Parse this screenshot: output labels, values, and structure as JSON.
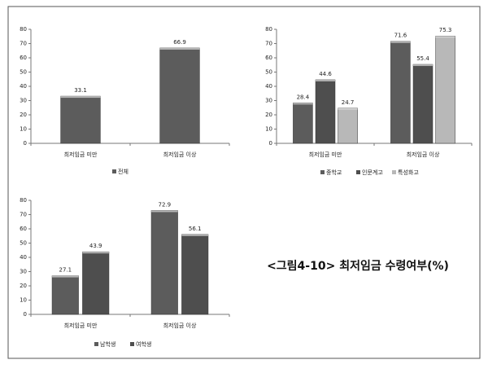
{
  "chart_data": [
    {
      "type": "bar",
      "categories": [
        "최저임금 미만",
        "최저임금 이상"
      ],
      "series": [
        {
          "name": "전체",
          "color": "#5c5c5c",
          "values": [
            33.1,
            66.9
          ]
        }
      ],
      "ylim": [
        0,
        80
      ],
      "yticks": [
        0,
        10,
        20,
        30,
        40,
        50,
        60,
        70,
        80
      ],
      "grid": false,
      "legend": "bottom"
    },
    {
      "type": "bar",
      "categories": [
        "최저임금 미만",
        "최저임금 이상"
      ],
      "series": [
        {
          "name": "중학교",
          "color": "#5c5c5c",
          "values": [
            28.4,
            71.6
          ]
        },
        {
          "name": "인문계고",
          "color": "#4e4e4e",
          "values": [
            44.6,
            55.4
          ]
        },
        {
          "name": "특성화고",
          "color": "#b8b8b8",
          "values": [
            24.7,
            75.3
          ]
        }
      ],
      "ylim": [
        0,
        80
      ],
      "yticks": [
        0,
        10,
        20,
        30,
        40,
        50,
        60,
        70,
        80
      ],
      "grid": false,
      "legend": "bottom"
    },
    {
      "type": "bar",
      "categories": [
        "최저임금 미만",
        "최저임금 이상"
      ],
      "series": [
        {
          "name": "남학생",
          "color": "#5c5c5c",
          "values": [
            27.1,
            72.9
          ]
        },
        {
          "name": "여학생",
          "color": "#4e4e4e",
          "values": [
            43.9,
            56.1
          ]
        }
      ],
      "ylim": [
        0,
        80
      ],
      "yticks": [
        0,
        10,
        20,
        30,
        40,
        50,
        60,
        70,
        80
      ],
      "grid": false,
      "legend": "bottom"
    }
  ],
  "caption": "<그림4-10> 최저임금 수령여부(%)"
}
